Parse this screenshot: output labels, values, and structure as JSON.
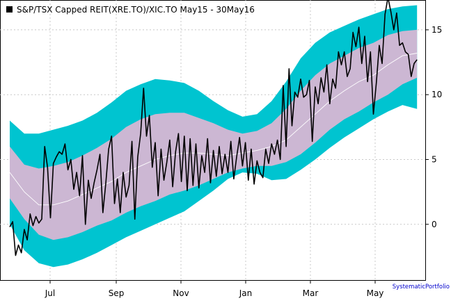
{
  "chart_data": {
    "type": "line",
    "title": "S&P/TSX Capped REIT(XRE.TO)/XIC.TO May15 - 30May16",
    "legend": {
      "placement": "top-left",
      "series_name": "S&P/TSX Capped REIT(XRE.TO)/XIC.TO May15 - 30May16"
    },
    "credit": "SystematicPortfolio",
    "grid": true,
    "x_ticks": [
      "Jul",
      "Sep",
      "Nov",
      "Jan",
      "Mar",
      "May"
    ],
    "y_ticks": [
      0,
      5,
      10,
      15
    ],
    "ylim": [
      -4.3,
      17.3
    ],
    "colors": {
      "outer_band": "#00c4d0",
      "inner_band": "#ccb7d3",
      "series": "#000000",
      "average": "#ffffff",
      "credit": "#0000cc"
    },
    "band_x": [
      0,
      10,
      20,
      30,
      40,
      50,
      60,
      70,
      80,
      90,
      100,
      110,
      120,
      130,
      140,
      150,
      160,
      170,
      180,
      190,
      200,
      210,
      220,
      230,
      240,
      250,
      260,
      270,
      280
    ],
    "average": [
      4.0,
      2.5,
      1.5,
      1.5,
      1.8,
      2.3,
      2.8,
      3.3,
      4.0,
      4.5,
      5.0,
      5.3,
      5.5,
      5.5,
      5.4,
      5.3,
      5.5,
      5.7,
      6.0,
      6.5,
      7.5,
      8.5,
      9.5,
      10.3,
      11.0,
      11.5,
      12.3,
      13.0,
      13.2
    ],
    "inner_upper": [
      6.0,
      4.6,
      4.3,
      4.5,
      4.8,
      5.3,
      5.9,
      6.6,
      7.5,
      8.1,
      8.5,
      8.6,
      8.6,
      8.2,
      7.8,
      7.3,
      7.0,
      7.2,
      7.8,
      8.9,
      10.3,
      11.5,
      12.4,
      13.0,
      13.6,
      14.0,
      14.6,
      14.9,
      15.0
    ],
    "inner_lower": [
      2.0,
      0.4,
      -0.8,
      -1.2,
      -1.0,
      -0.6,
      -0.1,
      0.3,
      0.9,
      1.4,
      1.8,
      2.3,
      2.6,
      3.0,
      3.5,
      4.0,
      4.3,
      4.5,
      4.5,
      4.8,
      5.4,
      6.3,
      7.3,
      8.1,
      8.7,
      9.4,
      10.0,
      10.8,
      11.3
    ],
    "outer_upper": [
      8.0,
      7.0,
      7.0,
      7.3,
      7.6,
      8.0,
      8.6,
      9.4,
      10.3,
      10.8,
      11.2,
      11.1,
      10.9,
      10.3,
      9.5,
      8.8,
      8.3,
      8.5,
      9.5,
      11.0,
      12.8,
      14.0,
      14.8,
      15.3,
      15.8,
      16.2,
      16.6,
      16.8,
      16.9
    ],
    "outer_lower": [
      0.0,
      -2.0,
      -3.0,
      -3.3,
      -3.1,
      -2.7,
      -2.2,
      -1.6,
      -1.0,
      -0.5,
      0.0,
      0.5,
      1.0,
      1.8,
      2.6,
      3.5,
      4.0,
      3.9,
      3.4,
      3.5,
      4.2,
      5.0,
      5.9,
      6.7,
      7.4,
      8.1,
      8.7,
      9.2,
      8.9
    ],
    "series_x": [
      0,
      2,
      4,
      6,
      8,
      10,
      12,
      14,
      16,
      18,
      20,
      22,
      24,
      26,
      28,
      30,
      32,
      34,
      36,
      38,
      40,
      42,
      44,
      46,
      48,
      50,
      52,
      54,
      56,
      58,
      60,
      62,
      64,
      66,
      68,
      70,
      72,
      74,
      76,
      78,
      80,
      82,
      84,
      86,
      88,
      90,
      92,
      94,
      96,
      98,
      100,
      102,
      104,
      106,
      108,
      110,
      112,
      114,
      116,
      118,
      120,
      122,
      124,
      126,
      128,
      130,
      132,
      134,
      136,
      138,
      140,
      142,
      144,
      146,
      148,
      150,
      152,
      154,
      156,
      158,
      160,
      162,
      164,
      166,
      168,
      170,
      172,
      174,
      176,
      178,
      180,
      182,
      184,
      186,
      188,
      190,
      192,
      194,
      196,
      198,
      200,
      202,
      204,
      206,
      208,
      210,
      212,
      214,
      216,
      218,
      220,
      222,
      224,
      226,
      228,
      230,
      232,
      234,
      236,
      238,
      240,
      242,
      244,
      246,
      248,
      250,
      252,
      254,
      256,
      258,
      260,
      262,
      264,
      266,
      268,
      270,
      272,
      274,
      276,
      278,
      280
    ],
    "series_values": [
      -0.2,
      0.2,
      -2.4,
      -1.6,
      -2.2,
      -0.4,
      -1.2,
      0.8,
      -0.1,
      0.6,
      0.1,
      0.4,
      6.0,
      4.4,
      0.5,
      4.7,
      5.2,
      5.6,
      5.4,
      6.2,
      4.2,
      5.0,
      2.7,
      4.0,
      2.2,
      5.3,
      0.0,
      3.4,
      2.0,
      3.2,
      4.2,
      5.4,
      0.9,
      3.1,
      5.8,
      6.8,
      1.6,
      3.5,
      0.9,
      4.0,
      2.1,
      3.0,
      6.4,
      0.4,
      5.2,
      7.0,
      10.5,
      6.8,
      8.4,
      4.4,
      6.3,
      2.2,
      5.8,
      3.4,
      4.8,
      6.5,
      2.9,
      5.6,
      7.0,
      3.3,
      6.8,
      2.6,
      6.6,
      3.0,
      6.2,
      2.8,
      5.3,
      4.0,
      6.6,
      3.2,
      5.7,
      3.7,
      6.0,
      3.9,
      5.4,
      4.0,
      6.4,
      3.5,
      5.2,
      6.7,
      4.5,
      6.3,
      3.4,
      5.8,
      3.1,
      4.9,
      4.0,
      3.6,
      5.8,
      4.7,
      6.2,
      5.4,
      6.5,
      5.0,
      10.7,
      6.0,
      12.0,
      7.6,
      10.2,
      9.8,
      11.2,
      9.8,
      10.0,
      11.1,
      6.4,
      10.6,
      9.3,
      11.3,
      10.2,
      12.3,
      9.3,
      11.2,
      10.5,
      13.3,
      12.3,
      13.3,
      11.4,
      12.0,
      14.8,
      13.7,
      15.2,
      12.4,
      14.5,
      11.0,
      13.3,
      8.5,
      10.9,
      13.8,
      12.4,
      16.2,
      17.5,
      16.4,
      15.0,
      16.3,
      13.8,
      14.0,
      13.3,
      13.1,
      11.4,
      12.4,
      12.7
    ]
  }
}
